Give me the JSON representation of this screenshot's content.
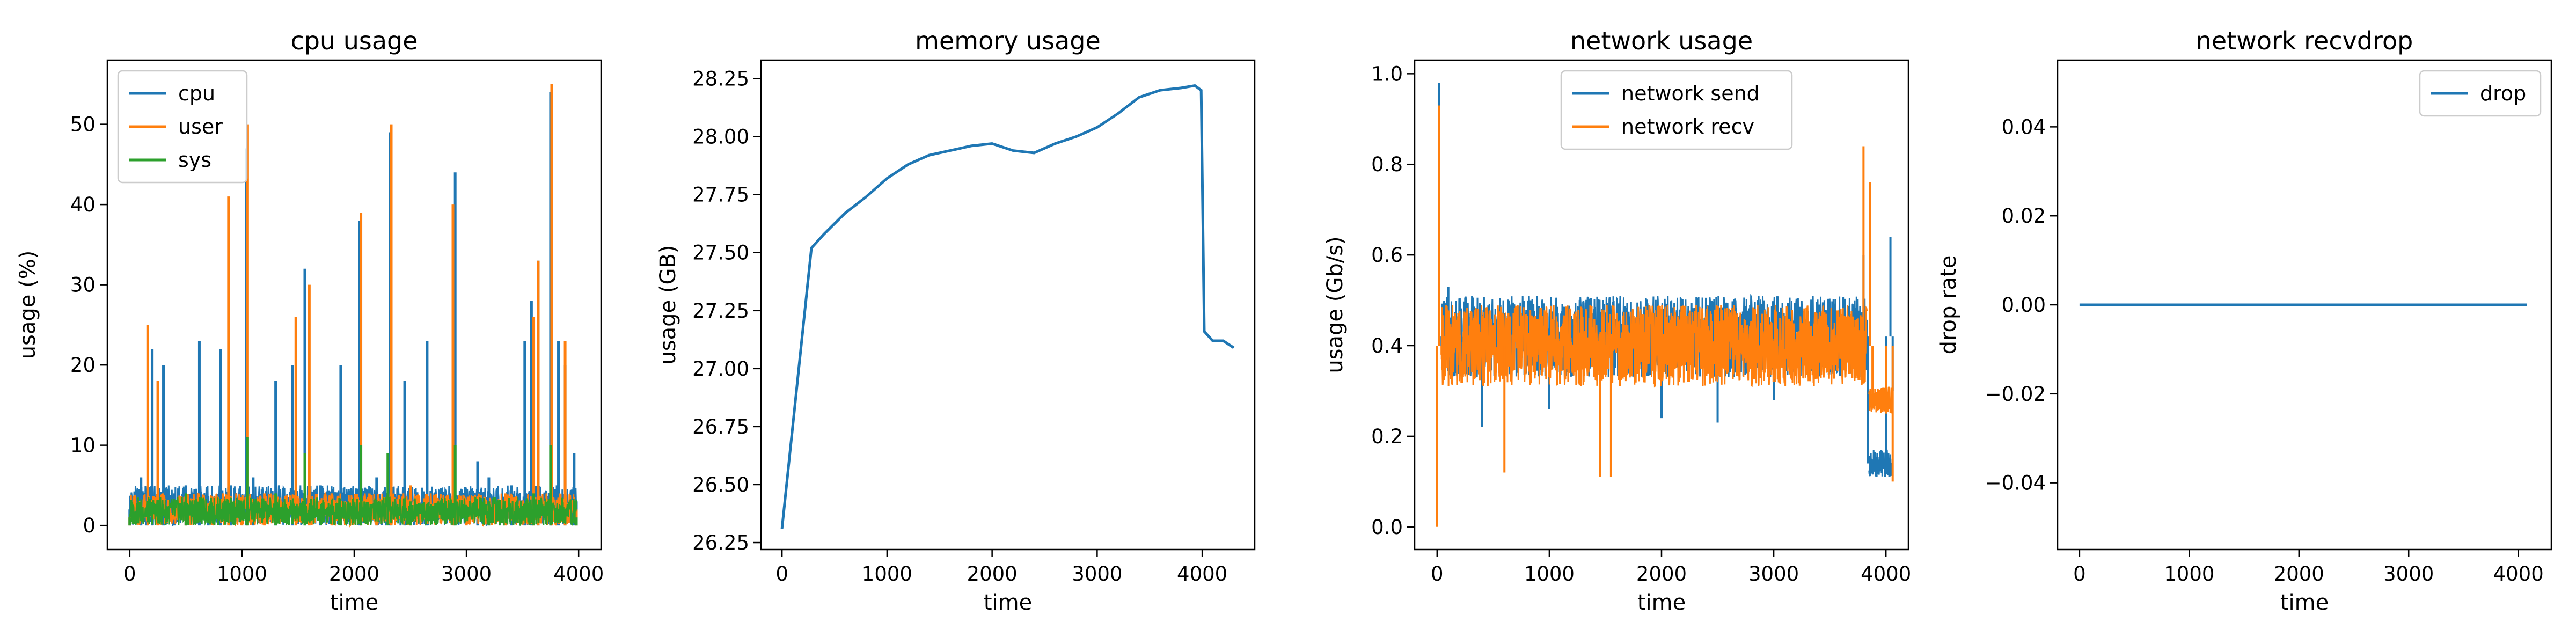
{
  "colors": {
    "blue": "#1f77b4",
    "orange": "#ff7f0e",
    "green": "#2ca02c"
  },
  "chart_data": [
    {
      "type": "line",
      "title": "cpu usage",
      "xlabel": "time",
      "ylabel": "usage (%)",
      "xlim": [
        -200,
        4200
      ],
      "ylim": [
        -3,
        58
      ],
      "xticks": [
        "0",
        "1000",
        "2000",
        "3000",
        "4000"
      ],
      "xtick_values": [
        0,
        1000,
        2000,
        3000,
        4000
      ],
      "yticks": [
        "0",
        "10",
        "20",
        "30",
        "40",
        "50"
      ],
      "ytick_values": [
        0,
        10,
        20,
        30,
        40,
        50
      ],
      "legend": "top-left",
      "series": [
        {
          "name": "cpu",
          "color": "#1f77b4",
          "points": [
            [
              0,
              2
            ],
            [
              100,
              6
            ],
            [
              150,
              3
            ],
            [
              200,
              22
            ],
            [
              300,
              20
            ],
            [
              400,
              4
            ],
            [
              500,
              5
            ],
            [
              620,
              23
            ],
            [
              700,
              3
            ],
            [
              810,
              22
            ],
            [
              900,
              5
            ],
            [
              1040,
              47
            ],
            [
              1100,
              6
            ],
            [
              1300,
              18
            ],
            [
              1450,
              20
            ],
            [
              1560,
              32
            ],
            [
              1700,
              5
            ],
            [
              1880,
              20
            ],
            [
              2050,
              38
            ],
            [
              2200,
              6
            ],
            [
              2320,
              49
            ],
            [
              2450,
              18
            ],
            [
              2650,
              23
            ],
            [
              2900,
              44
            ],
            [
              3100,
              8
            ],
            [
              3200,
              6
            ],
            [
              3400,
              5
            ],
            [
              3520,
              23
            ],
            [
              3580,
              28
            ],
            [
              3640,
              33
            ],
            [
              3750,
              54
            ],
            [
              3820,
              23
            ],
            [
              3880,
              20
            ],
            [
              3960,
              9
            ],
            [
              3980,
              3
            ]
          ]
        },
        {
          "name": "user",
          "color": "#ff7f0e",
          "points": [
            [
              0,
              1
            ],
            [
              160,
              25
            ],
            [
              250,
              18
            ],
            [
              500,
              3
            ],
            [
              880,
              41
            ],
            [
              1000,
              2
            ],
            [
              1050,
              50
            ],
            [
              1200,
              4
            ],
            [
              1480,
              26
            ],
            [
              1600,
              30
            ],
            [
              1800,
              4
            ],
            [
              2060,
              39
            ],
            [
              2200,
              3
            ],
            [
              2330,
              50
            ],
            [
              2500,
              5
            ],
            [
              2880,
              40
            ],
            [
              3000,
              3
            ],
            [
              3350,
              4
            ],
            [
              3600,
              26
            ],
            [
              3640,
              33
            ],
            [
              3760,
              55
            ],
            [
              3880,
              23
            ],
            [
              3980,
              2
            ]
          ]
        },
        {
          "name": "sys",
          "color": "#2ca02c",
          "points": [
            [
              0,
              1
            ],
            [
              500,
              4
            ],
            [
              1050,
              11
            ],
            [
              1300,
              4
            ],
            [
              1560,
              9
            ],
            [
              2060,
              10
            ],
            [
              2300,
              9
            ],
            [
              2500,
              3
            ],
            [
              2900,
              10
            ],
            [
              3200,
              3
            ],
            [
              3600,
              4
            ],
            [
              3750,
              10
            ],
            [
              3980,
              1
            ]
          ]
        }
      ]
    },
    {
      "type": "line",
      "title": "memory usage",
      "xlabel": "time",
      "ylabel": "usage (GB)",
      "xlim": [
        -200,
        4500
      ],
      "ylim": [
        26.22,
        28.33
      ],
      "xticks": [
        "0",
        "1000",
        "2000",
        "3000",
        "4000"
      ],
      "xtick_values": [
        0,
        1000,
        2000,
        3000,
        4000
      ],
      "yticks": [
        "26.25",
        "26.50",
        "26.75",
        "27.00",
        "27.25",
        "27.50",
        "27.75",
        "28.00",
        "28.25"
      ],
      "ytick_values": [
        26.25,
        26.5,
        26.75,
        27.0,
        27.25,
        27.5,
        27.75,
        28.0,
        28.25
      ],
      "series": [
        {
          "name": "",
          "color": "#1f77b4",
          "points": [
            [
              0,
              26.31
            ],
            [
              280,
              27.52
            ],
            [
              400,
              27.58
            ],
            [
              600,
              27.67
            ],
            [
              800,
              27.74
            ],
            [
              1000,
              27.82
            ],
            [
              1200,
              27.88
            ],
            [
              1400,
              27.92
            ],
            [
              1600,
              27.94
            ],
            [
              1800,
              27.96
            ],
            [
              2000,
              27.97
            ],
            [
              2200,
              27.94
            ],
            [
              2400,
              27.93
            ],
            [
              2600,
              27.97
            ],
            [
              2800,
              28.0
            ],
            [
              3000,
              28.04
            ],
            [
              3200,
              28.1
            ],
            [
              3400,
              28.17
            ],
            [
              3600,
              28.2
            ],
            [
              3800,
              28.21
            ],
            [
              3930,
              28.22
            ],
            [
              3990,
              28.2
            ],
            [
              4020,
              27.16
            ],
            [
              4100,
              27.12
            ],
            [
              4200,
              27.12
            ],
            [
              4300,
              27.09
            ]
          ]
        }
      ]
    },
    {
      "type": "line",
      "title": "network usage",
      "xlabel": "time",
      "ylabel": "usage (Gb/s)",
      "xlim": [
        -200,
        4200
      ],
      "ylim": [
        -0.05,
        1.03
      ],
      "xticks": [
        "0",
        "1000",
        "2000",
        "3000",
        "4000"
      ],
      "xtick_values": [
        0,
        1000,
        2000,
        3000,
        4000
      ],
      "yticks": [
        "0.0",
        "0.2",
        "0.4",
        "0.6",
        "0.8",
        "1.0"
      ],
      "ytick_values": [
        0.0,
        0.2,
        0.4,
        0.6,
        0.8,
        1.0
      ],
      "legend": "top-center",
      "series": [
        {
          "name": "network send",
          "color": "#1f77b4",
          "band": [
            0.33,
            0.51
          ],
          "points": [
            [
              0,
              0.42
            ],
            [
              20,
              0.98
            ],
            [
              40,
              0.4
            ],
            [
              100,
              0.53
            ],
            [
              400,
              0.22
            ],
            [
              1000,
              0.26
            ],
            [
              2000,
              0.24
            ],
            [
              2500,
              0.23
            ],
            [
              3000,
              0.28
            ],
            [
              3800,
              0.6
            ],
            [
              3840,
              0.14
            ],
            [
              4000,
              0.12
            ],
            [
              4040,
              0.64
            ],
            [
              4060,
              0.3
            ]
          ]
        },
        {
          "name": "network recv",
          "color": "#ff7f0e",
          "band": [
            0.31,
            0.49
          ],
          "points": [
            [
              0,
              0.0
            ],
            [
              20,
              0.93
            ],
            [
              40,
              0.38
            ],
            [
              600,
              0.12
            ],
            [
              1450,
              0.11
            ],
            [
              1550,
              0.11
            ],
            [
              3800,
              0.84
            ],
            [
              3860,
              0.76
            ],
            [
              3880,
              0.28
            ],
            [
              4000,
              0.25
            ],
            [
              4060,
              0.1
            ]
          ]
        }
      ]
    },
    {
      "type": "line",
      "title": "network recvdrop",
      "xlabel": "time",
      "ylabel": "drop rate",
      "xlim": [
        -200,
        4300
      ],
      "ylim": [
        -0.055,
        0.055
      ],
      "xticks": [
        "0",
        "1000",
        "2000",
        "3000",
        "4000"
      ],
      "xtick_values": [
        0,
        1000,
        2000,
        3000,
        4000
      ],
      "yticks": [
        "−0.04",
        "−0.02",
        "0.00",
        "0.02",
        "0.04"
      ],
      "ytick_values": [
        -0.04,
        -0.02,
        0.0,
        0.02,
        0.04
      ],
      "legend": "top-right",
      "series": [
        {
          "name": "drop",
          "color": "#1f77b4",
          "points": [
            [
              0,
              0
            ],
            [
              4080,
              0
            ]
          ]
        }
      ]
    }
  ]
}
